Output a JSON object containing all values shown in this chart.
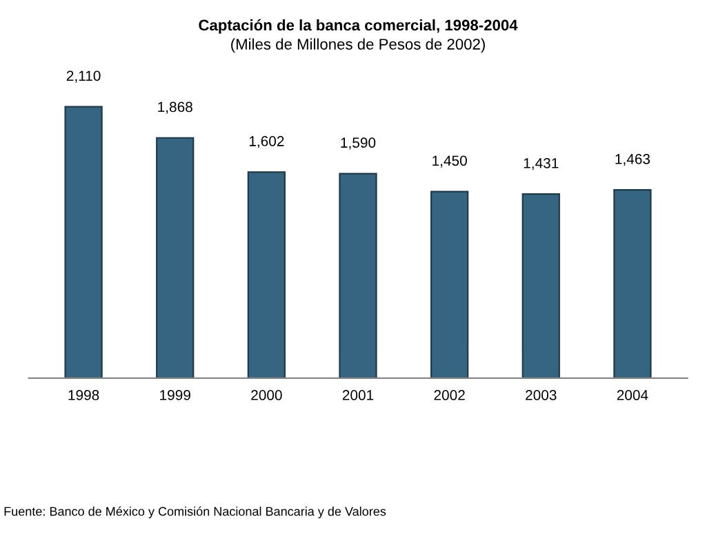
{
  "chart_data": {
    "type": "bar",
    "title": "Captación de la banca comercial, 1998-2004",
    "subtitle": "(Miles de Millones de Pesos de 2002)",
    "categories": [
      "1998",
      "1999",
      "2000",
      "2001",
      "2002",
      "2003",
      "2004"
    ],
    "values": [
      2110,
      1868,
      1602,
      1590,
      1450,
      1431,
      1463
    ],
    "value_labels": [
      "2,110",
      "1,868",
      "1,602",
      "1,590",
      "1,450",
      "1,431",
      "1,463"
    ],
    "color": "#356580",
    "grid": false,
    "legend": false,
    "annotations": [
      "Fuente: Banco de México y Comisión Nacional Bancaria y de Valores"
    ]
  }
}
